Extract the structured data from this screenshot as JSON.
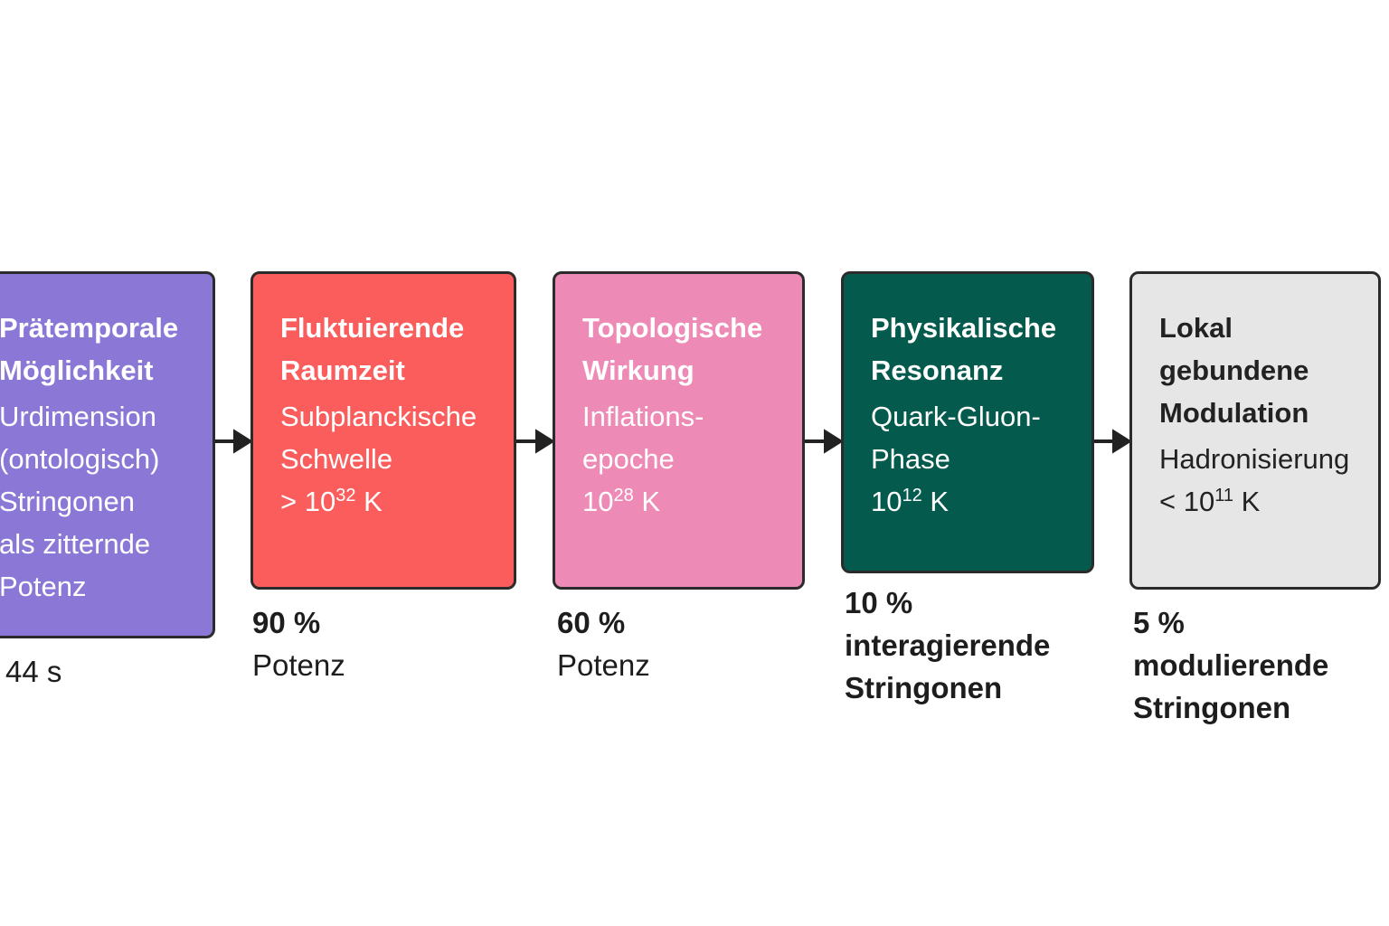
{
  "nodes": [
    {
      "title": [
        "Prätemporale",
        "Möglichkeit"
      ],
      "body": [
        "Urdimension",
        "(ontologisch)",
        "Stringonen",
        "als zitternde",
        "Potenz"
      ],
      "caption": [
        "44 s"
      ]
    },
    {
      "title": [
        "Fluktuierende",
        "Raumzeit"
      ],
      "body": [
        "Subplanckische",
        "Schwelle",
        {
          "base": "> 10",
          "sup": "32",
          "unit": " K"
        }
      ],
      "caption": [
        "90 %",
        "Potenz"
      ]
    },
    {
      "title": [
        "Topologische",
        "Wirkung"
      ],
      "body": [
        "Inflations-",
        "epoche",
        {
          "base": "10",
          "sup": "28",
          "unit": " K"
        }
      ],
      "caption": [
        "60 %",
        "Potenz"
      ]
    },
    {
      "title": [
        "Physikalische",
        "Resonanz"
      ],
      "body": [
        "Quark-Gluon-",
        "Phase",
        {
          "base": "10",
          "sup": "12",
          "unit": " K"
        }
      ],
      "caption": [
        "10 %",
        "interagierende",
        "Stringonen"
      ]
    },
    {
      "title": [
        "Lokal",
        "gebundene",
        "Modulation"
      ],
      "body": [
        "Hadronisierung",
        {
          "base": "< 10",
          "sup": "11",
          "unit": " K"
        }
      ],
      "caption": [
        "5 %",
        "modulierende",
        "Stringonen"
      ]
    }
  ]
}
